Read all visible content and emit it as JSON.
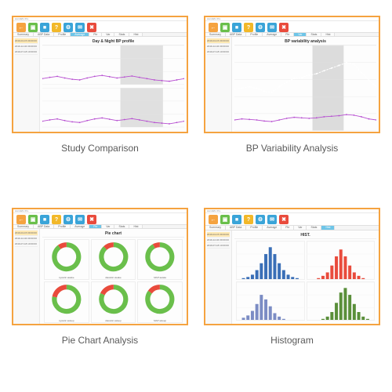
{
  "panels": [
    {
      "caption": "Study Comparison",
      "chart_title": "Day & Night BP profile"
    },
    {
      "caption": "BP Variability Analysis",
      "chart_title": "BP variability analysis"
    },
    {
      "caption": "Pie Chart Analysis",
      "chart_title": "Pie chart"
    },
    {
      "caption": "Histogram",
      "chart_title": "HIST."
    }
  ],
  "app_title": "AccuWin Pro",
  "toolbar_buttons": [
    {
      "color": "#f5a340",
      "glyph": "←",
      "name": "back-button"
    },
    {
      "color": "#6abf4b",
      "glyph": "▣",
      "name": "patients-button"
    },
    {
      "color": "#3aa4d8",
      "glyph": "■",
      "name": "bp-data-button"
    },
    {
      "color": "#f2b829",
      "glyph": "?",
      "name": "help-button"
    },
    {
      "color": "#3aa4d8",
      "glyph": "⚙",
      "name": "settings-button"
    },
    {
      "color": "#3aa4d8",
      "glyph": "✉",
      "name": "export-button"
    },
    {
      "color": "#e94b3c",
      "glyph": "✖",
      "name": "exit-button"
    }
  ],
  "tabs": [
    "Summary",
    "ABP Data",
    "Profile",
    "Average",
    "Pie",
    "Var",
    "Stats",
    "Hist"
  ],
  "active_tab_index": {
    "0": 3,
    "1": 5,
    "2": 4,
    "3": 7
  },
  "sidebar_dates": [
    "2019-04-15 09:00:00",
    "2019-12-04 09:00:00",
    "2019-07-18 10:00:00"
  ],
  "donuts": [
    {
      "label": "systolic awake",
      "green": 0.9,
      "red": 0.1
    },
    {
      "label": "diastolic awake",
      "green": 0.88,
      "red": 0.12
    },
    {
      "label": "MAP awake",
      "green": 0.92,
      "red": 0.08
    },
    {
      "label": "systolic asleep",
      "green": 0.78,
      "red": 0.22
    },
    {
      "label": "diastolic asleep",
      "green": 0.82,
      "red": 0.18
    },
    {
      "label": "MAP asleep",
      "green": 0.85,
      "red": 0.15
    }
  ],
  "donut_colors": {
    "green": "#6abf4b",
    "red": "#e94b3c",
    "track": "#f3f3f3"
  },
  "line_chart": {
    "sys_band_color": "#3aa4d8",
    "sys_band_opacity": 0.55,
    "dia_line_color": "#b74fd1",
    "grid_color": "#e4e4e4",
    "night_bg": "#e0e0e0",
    "series": {
      "sys_upper": [
        155,
        160,
        162,
        158,
        150,
        148,
        158,
        165,
        170,
        160,
        158,
        162,
        166,
        160,
        155,
        150,
        148,
        145,
        150,
        155
      ],
      "sys_lower": [
        120,
        125,
        128,
        122,
        118,
        115,
        125,
        130,
        135,
        128,
        126,
        130,
        134,
        128,
        122,
        118,
        115,
        112,
        118,
        122
      ],
      "dia": [
        78,
        82,
        85,
        80,
        76,
        74,
        80,
        85,
        88,
        84,
        80,
        83,
        86,
        82,
        78,
        74,
        72,
        70,
        74,
        78
      ]
    },
    "y_range": [
      60,
      180
    ]
  },
  "variability_chart": {
    "band_color": "#3aa4d8",
    "band_opacity": 0.65,
    "mid_line_color": "#ffffff",
    "pulse_color": "#b74fd1",
    "grid_color": "#e4e4e4",
    "night_bg": "#dcdcdc",
    "upper": [
      145,
      148,
      150,
      147,
      140,
      138,
      150,
      160,
      168,
      170,
      175,
      178,
      185,
      190,
      195,
      200,
      198,
      180,
      165,
      150
    ],
    "lower": [
      110,
      112,
      115,
      112,
      108,
      106,
      115,
      122,
      128,
      130,
      133,
      136,
      140,
      145,
      150,
      155,
      152,
      138,
      125,
      115
    ],
    "pulse": [
      70,
      72,
      71,
      70,
      68,
      67,
      70,
      73,
      75,
      74,
      73,
      74,
      76,
      77,
      78,
      80,
      79,
      76,
      72,
      70
    ],
    "y_range": [
      50,
      210
    ]
  },
  "histogram": {
    "colors": [
      "#3a6fb7",
      "#e94b3c",
      "#7b8cc4",
      "#5a8f3a"
    ],
    "data": [
      [
        0,
        1,
        2,
        4,
        8,
        14,
        22,
        28,
        22,
        14,
        8,
        4,
        2,
        1,
        0
      ],
      [
        0,
        0,
        1,
        3,
        6,
        12,
        20,
        26,
        20,
        12,
        6,
        3,
        1,
        0,
        0
      ],
      [
        0,
        2,
        4,
        8,
        14,
        22,
        18,
        12,
        6,
        3,
        1,
        0,
        0,
        0,
        0
      ],
      [
        0,
        0,
        0,
        1,
        3,
        7,
        15,
        24,
        28,
        22,
        14,
        7,
        3,
        1,
        0
      ]
    ],
    "y_max": 30,
    "grid_color": "#eeeeee"
  },
  "colors": {
    "window_border": "#f5a340",
    "caption": "#5a5a5a",
    "text": "#333333"
  }
}
